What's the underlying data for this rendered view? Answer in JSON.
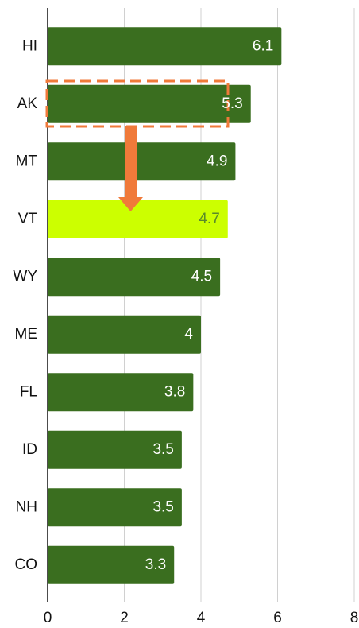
{
  "chart_data": {
    "type": "bar",
    "orientation": "horizontal",
    "categories": [
      "HI",
      "AK",
      "MT",
      "VT",
      "WY",
      "ME",
      "FL",
      "ID",
      "NH",
      "CO"
    ],
    "values": [
      6.1,
      5.3,
      4.9,
      4.7,
      4.5,
      4,
      3.8,
      3.5,
      3.5,
      3.3
    ],
    "color": "#3a6e1f",
    "highlight": "VT",
    "highlight_color": "#ccff00",
    "highlight_label_color": "#5a8a2a",
    "xlim": [
      0,
      8
    ],
    "xticks": [
      0,
      2,
      4,
      6,
      8
    ],
    "grid": true
  }
}
